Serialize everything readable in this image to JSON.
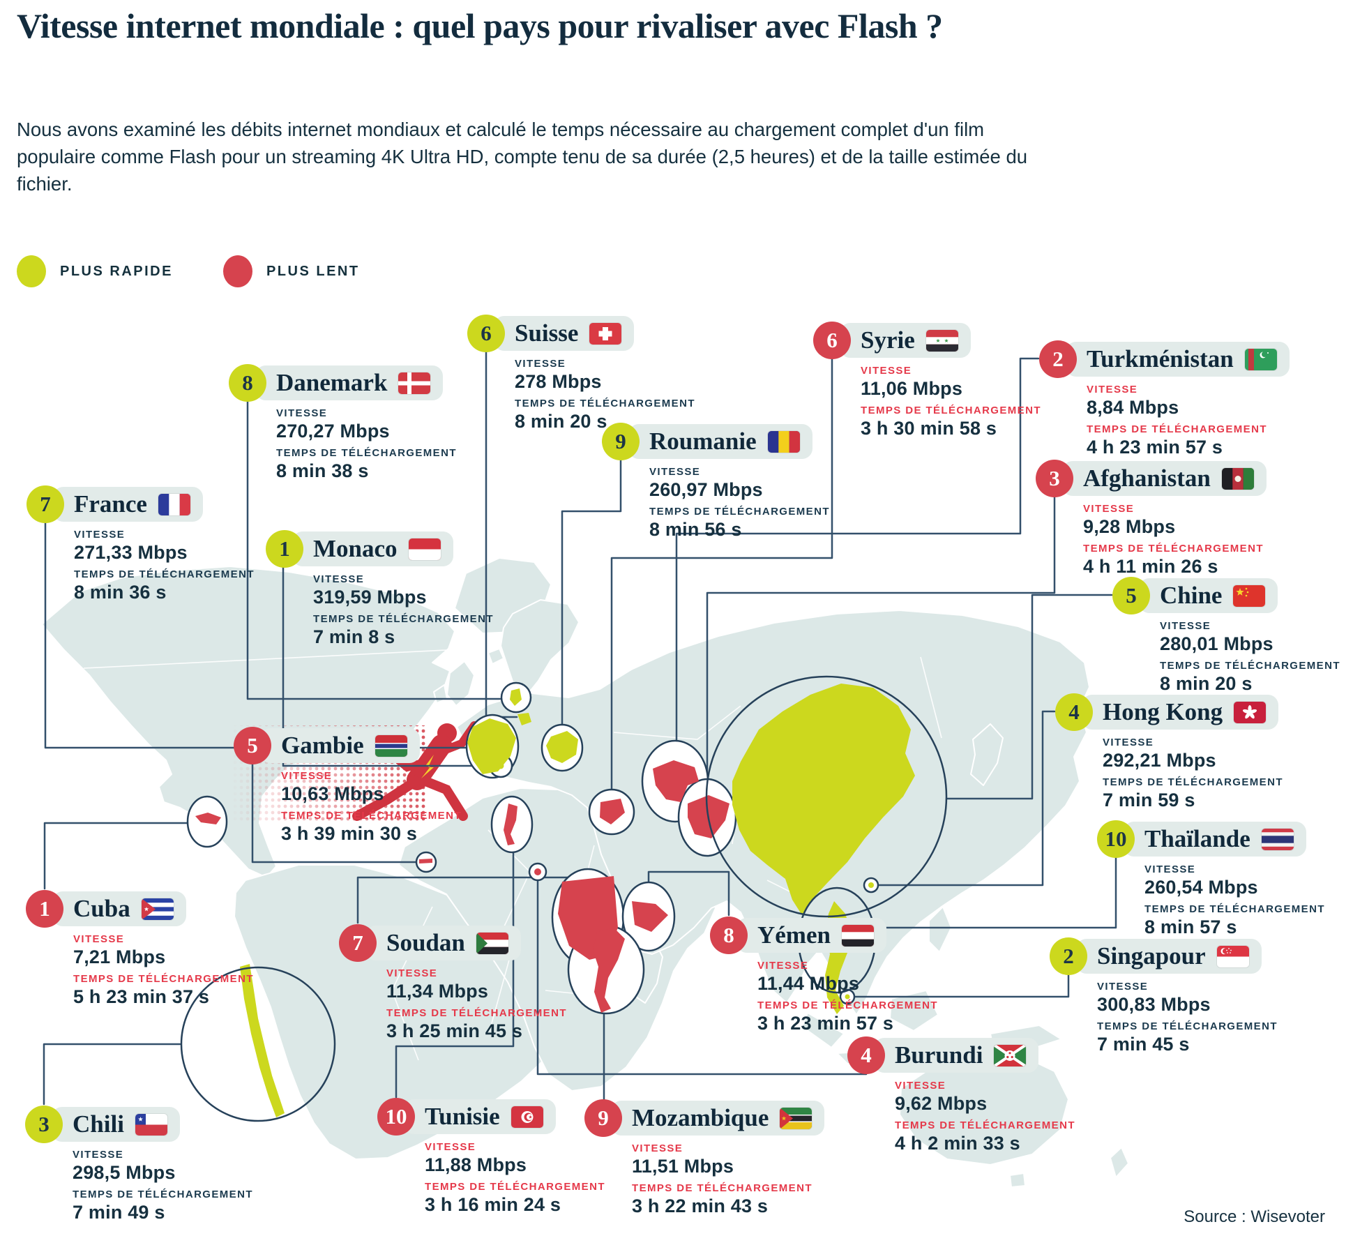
{
  "title": "Vitesse internet mondiale : quel pays pour rivaliser avec Flash ?",
  "intro": "Nous avons examiné les débits internet mondiaux et calculé le temps nécessaire au chargement complet d'un film populaire comme Flash pour un streaming 4K Ultra HD, compte tenu de sa durée (2,5 heures) et de la taille estimée du fichier.",
  "legend": [
    {
      "label": "PLUS RAPIDE",
      "color": "#ccd81e"
    },
    {
      "label": "PLUS LENT",
      "color": "#d6434e"
    }
  ],
  "field_labels": {
    "speed": "VITESSE",
    "time": "TEMPS DE TÉLÉCHARGEMENT"
  },
  "source": "Source : Wisevoter",
  "colors": {
    "faster": "#ccd81e",
    "slower": "#d6434e",
    "slower_label": "#e5394a",
    "navy": "#16303f",
    "pill_bg": "#e2ebe9",
    "map_fill": "#dce8e7",
    "line": "#33506b"
  },
  "countries": [
    {
      "id": "monaco",
      "name": "Monaco",
      "group": "faster",
      "rank": "1",
      "speed": "319,59 Mbps",
      "time": "7 min 8 s"
    },
    {
      "id": "singapour",
      "name": "Singapour",
      "group": "faster",
      "rank": "2",
      "speed": "300,83 Mbps",
      "time": "7 min 45 s"
    },
    {
      "id": "chili",
      "name": "Chili",
      "group": "faster",
      "rank": "3",
      "speed": "298,5 Mbps",
      "time": "7 min 49 s"
    },
    {
      "id": "hong-kong",
      "name": "Hong Kong",
      "group": "faster",
      "rank": "4",
      "speed": "292,21 Mbps",
      "time": "7 min 59 s"
    },
    {
      "id": "chine",
      "name": "Chine",
      "group": "faster",
      "rank": "5",
      "speed": "280,01 Mbps",
      "time": "8 min 20 s"
    },
    {
      "id": "suisse",
      "name": "Suisse",
      "group": "faster",
      "rank": "6",
      "speed": "278 Mbps",
      "time": "8 min 20 s"
    },
    {
      "id": "france",
      "name": "France",
      "group": "faster",
      "rank": "7",
      "speed": "271,33 Mbps",
      "time": "8 min 36 s"
    },
    {
      "id": "danemark",
      "name": "Danemark",
      "group": "faster",
      "rank": "8",
      "speed": "270,27 Mbps",
      "time": "8 min 38 s"
    },
    {
      "id": "roumanie",
      "name": "Roumanie",
      "group": "faster",
      "rank": "9",
      "speed": "260,97 Mbps",
      "time": "8 min 56 s"
    },
    {
      "id": "thailande",
      "name": "Thaïlande",
      "group": "faster",
      "rank": "10",
      "speed": "260,54 Mbps",
      "time": "8 min 57 s"
    },
    {
      "id": "cuba",
      "name": "Cuba",
      "group": "slower",
      "rank": "1",
      "speed": "7,21 Mbps",
      "time": "5 h 23 min 37 s"
    },
    {
      "id": "turkmenistan",
      "name": "Turkménistan",
      "group": "slower",
      "rank": "2",
      "speed": "8,84 Mbps",
      "time": "4 h 23 min 57 s"
    },
    {
      "id": "afghanistan",
      "name": "Afghanistan",
      "group": "slower",
      "rank": "3",
      "speed": "9,28 Mbps",
      "time": "4 h 11 min 26 s"
    },
    {
      "id": "burundi",
      "name": "Burundi",
      "group": "slower",
      "rank": "4",
      "speed": "9,62 Mbps",
      "time": "4 h 2 min 33 s"
    },
    {
      "id": "gambie",
      "name": "Gambie",
      "group": "slower",
      "rank": "5",
      "speed": "10,63 Mbps",
      "time": "3 h 39 min 30 s"
    },
    {
      "id": "syrie",
      "name": "Syrie",
      "group": "slower",
      "rank": "6",
      "speed": "11,06 Mbps",
      "time": "3 h 30 min 58 s"
    },
    {
      "id": "soudan",
      "name": "Soudan",
      "group": "slower",
      "rank": "7",
      "speed": "11,34 Mbps",
      "time": "3 h 25 min 45 s"
    },
    {
      "id": "yemen",
      "name": "Yémen",
      "group": "slower",
      "rank": "8",
      "speed": "11,44 Mbps",
      "time": "3 h 23 min 57 s"
    },
    {
      "id": "mozambique",
      "name": "Mozambique",
      "group": "slower",
      "rank": "9",
      "speed": "11,51 Mbps",
      "time": "3 h 22 min 43 s"
    },
    {
      "id": "tunisie",
      "name": "Tunisie",
      "group": "slower",
      "rank": "10",
      "speed": "11,88 Mbps",
      "time": "3 h 16 min 24 s"
    }
  ],
  "chart_data": {
    "type": "table",
    "title": "Vitesse internet mondiale : quel pays pour rivaliser avec Flash ?",
    "series": [
      {
        "name": "PLUS RAPIDE",
        "categories": [
          "Monaco",
          "Singapour",
          "Chili",
          "Hong Kong",
          "Chine",
          "Suisse",
          "France",
          "Danemark",
          "Roumanie",
          "Thaïlande"
        ],
        "values_mbps": [
          319.59,
          300.83,
          298.5,
          292.21,
          280.01,
          278,
          271.33,
          270.27,
          260.97,
          260.54
        ],
        "download_times": [
          "7 min 8 s",
          "7 min 45 s",
          "7 min 49 s",
          "7 min 59 s",
          "8 min 20 s",
          "8 min 20 s",
          "8 min 36 s",
          "8 min 38 s",
          "8 min 56 s",
          "8 min 57 s"
        ]
      },
      {
        "name": "PLUS LENT",
        "categories": [
          "Cuba",
          "Turkménistan",
          "Afghanistan",
          "Burundi",
          "Gambie",
          "Syrie",
          "Soudan",
          "Yémen",
          "Mozambique",
          "Tunisie"
        ],
        "values_mbps": [
          7.21,
          8.84,
          9.28,
          9.62,
          10.63,
          11.06,
          11.34,
          11.44,
          11.51,
          11.88
        ],
        "download_times": [
          "5 h 23 min 37 s",
          "4 h 23 min 57 s",
          "4 h 11 min 26 s",
          "4 h 2 min 33 s",
          "3 h 39 min 30 s",
          "3 h 30 min 58 s",
          "3 h 25 min 45 s",
          "3 h 23 min 57 s",
          "3 h 22 min 43 s",
          "3 h 16 min 24 s"
        ]
      }
    ]
  }
}
